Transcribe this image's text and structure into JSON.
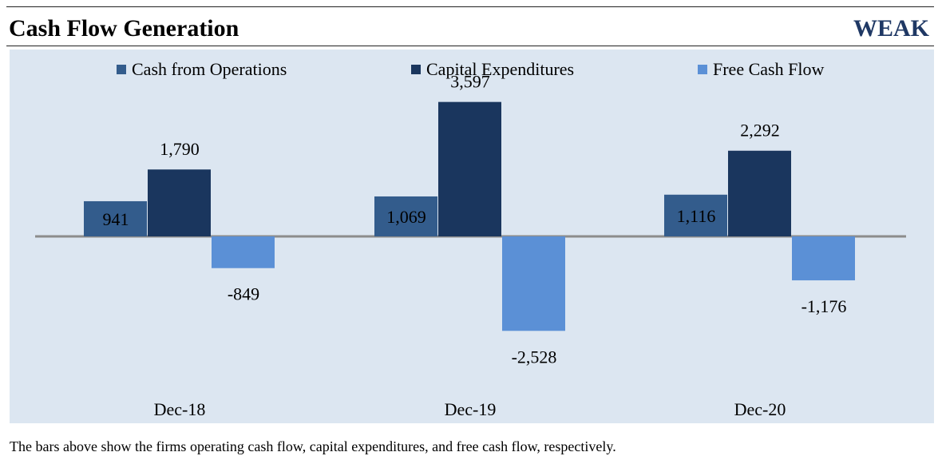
{
  "header": {
    "title": "Cash Flow Generation",
    "rating": "WEAK"
  },
  "caption": "The bars above show the firms operating cash flow, capital expenditures, and free cash flow, respectively.",
  "chart_data": {
    "type": "bar",
    "categories": [
      "Dec-18",
      "Dec-19",
      "Dec-20"
    ],
    "series": [
      {
        "name": "Cash from Operations",
        "color": "#335c8c",
        "values": [
          941,
          1069,
          1116
        ],
        "labels": [
          "941",
          "1,069",
          "1,116"
        ]
      },
      {
        "name": "Capital Expenditures",
        "color": "#1a365e",
        "values": [
          1790,
          3597,
          2292
        ],
        "labels": [
          "1,790",
          "3,597",
          "2,292"
        ]
      },
      {
        "name": "Free Cash Flow",
        "color": "#5b90d6",
        "values": [
          -849,
          -2528,
          -1176
        ],
        "labels": [
          "-849",
          "-2,528",
          "-1,176"
        ]
      }
    ],
    "legend_position": "top",
    "background": "#dce6f1",
    "axis_color": "#8c8c8c",
    "grid": false
  }
}
